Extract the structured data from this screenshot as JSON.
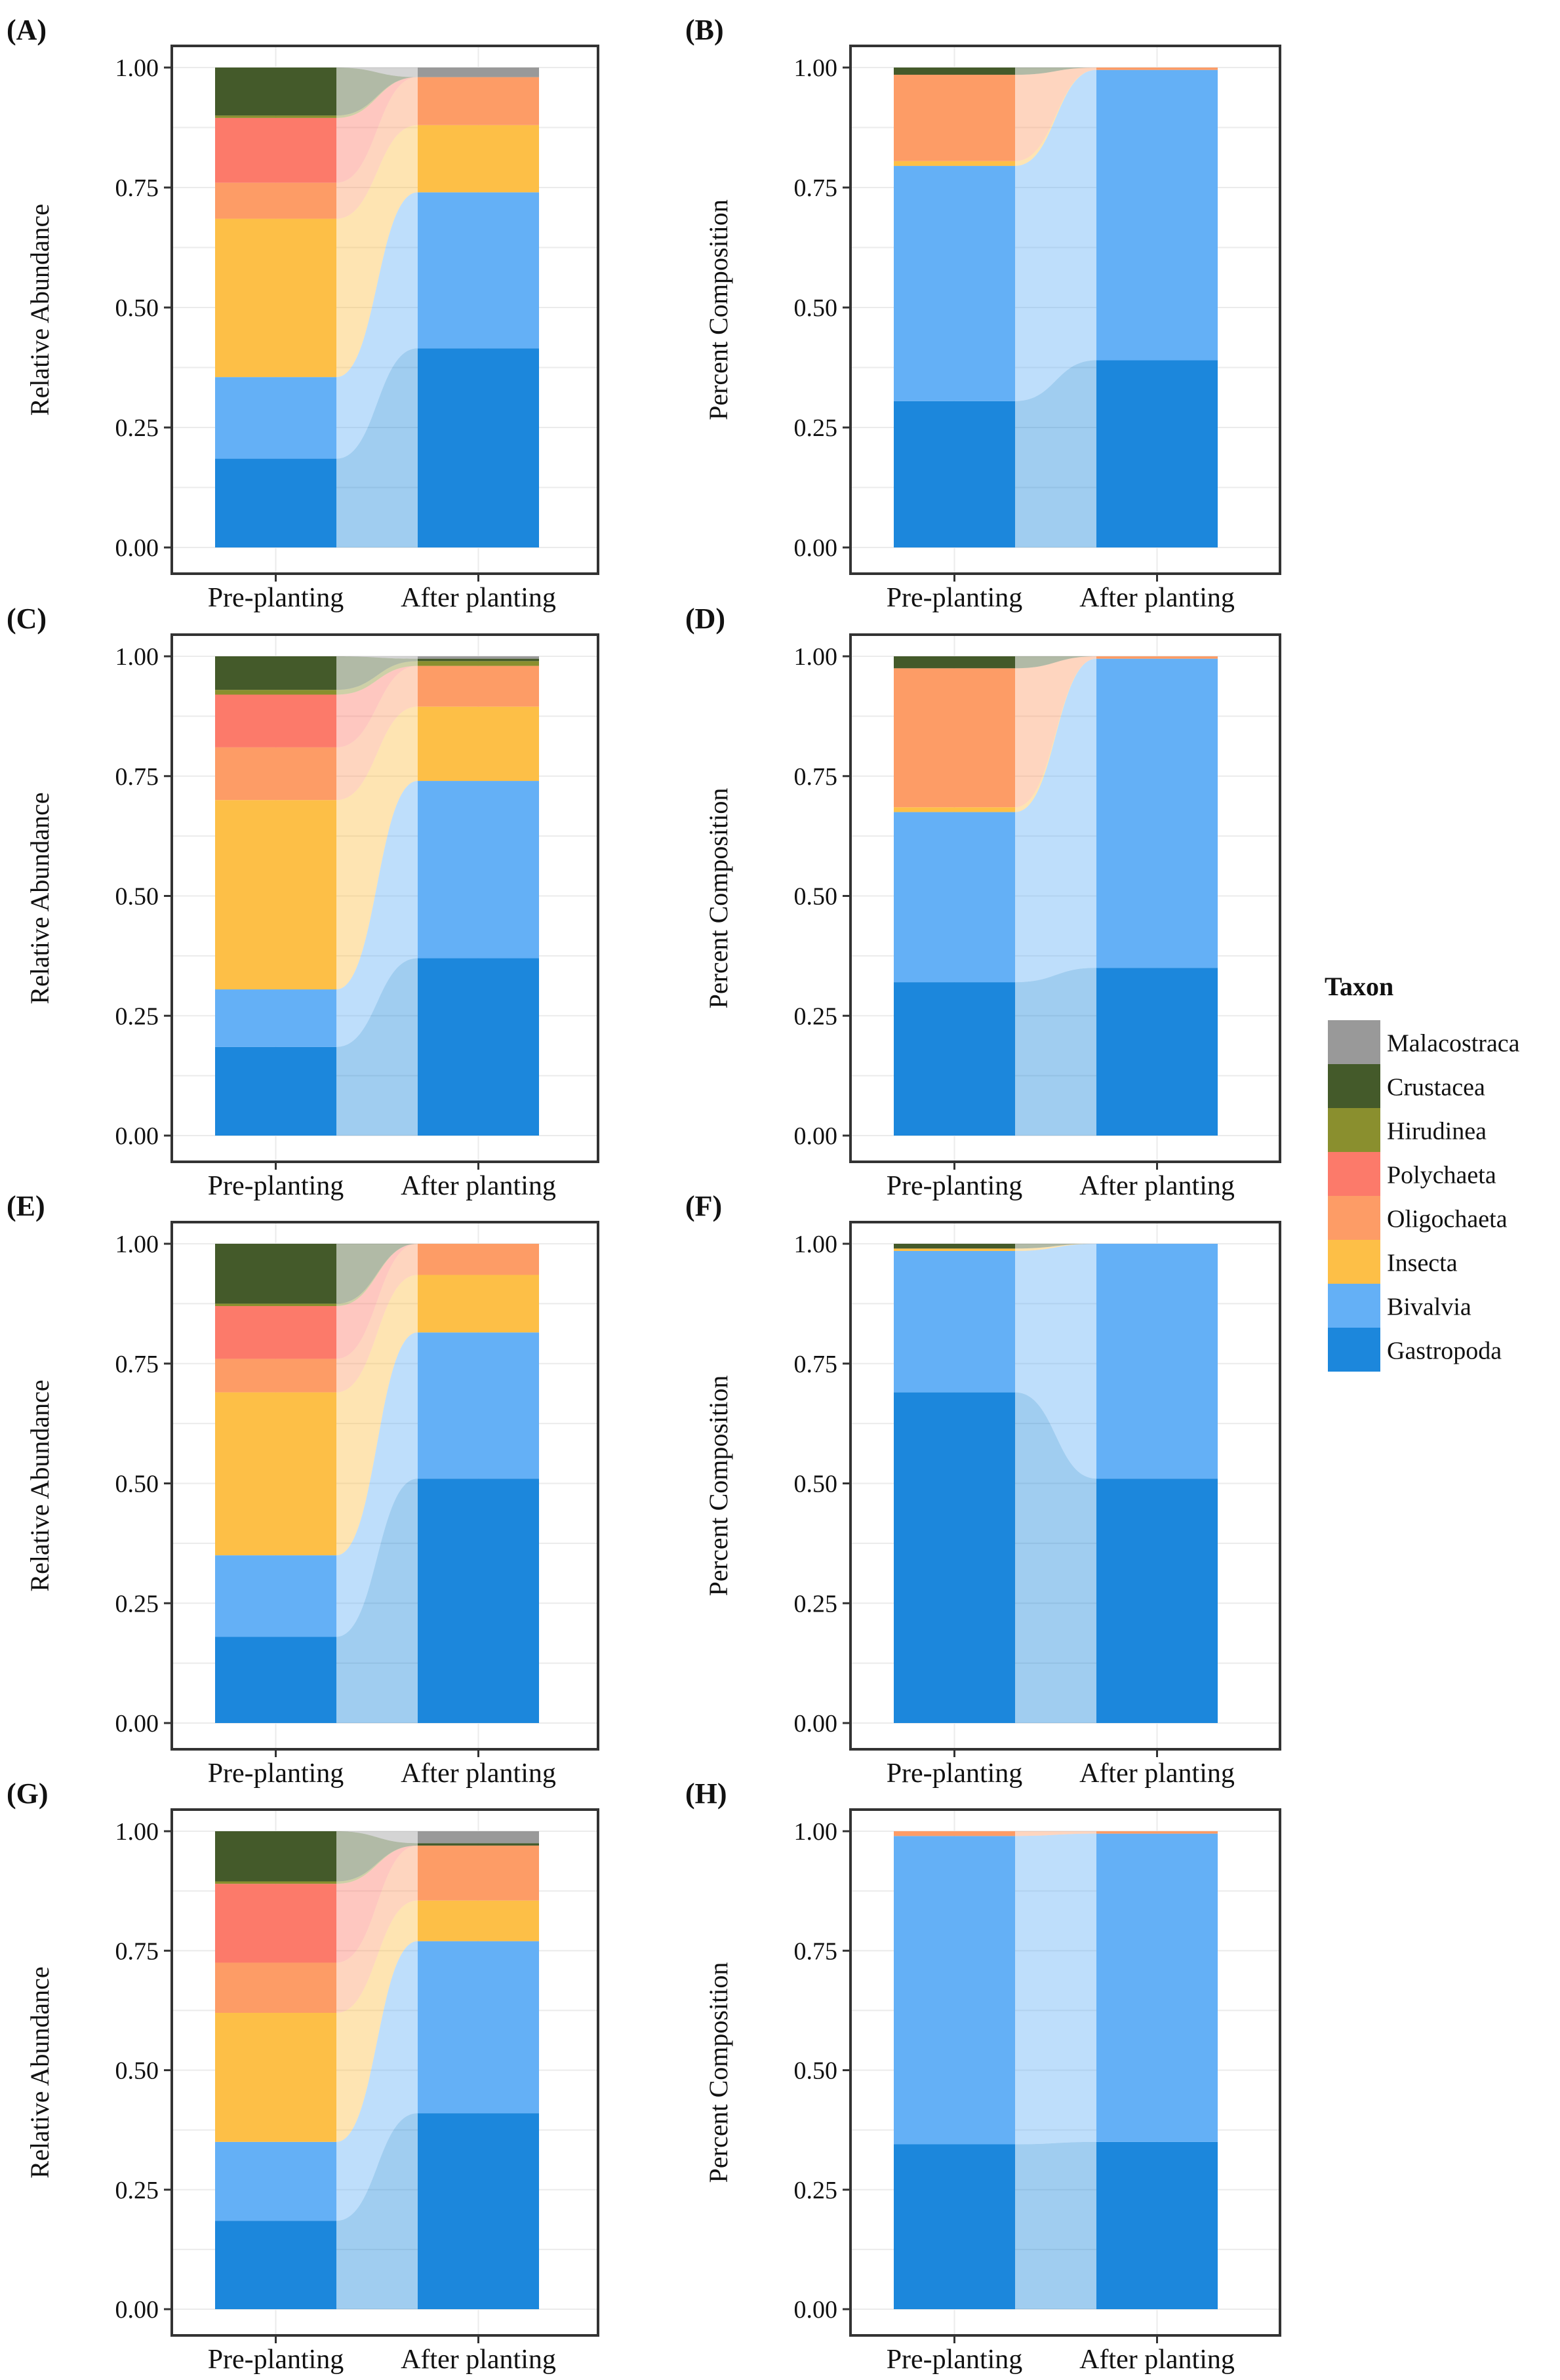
{
  "legend": {
    "title": "Taxon",
    "items": [
      {
        "name": "Malacostraca",
        "color": "#999999"
      },
      {
        "name": "Crustacea",
        "color": "#445a2a"
      },
      {
        "name": "Hirudinea",
        "color": "#8a8f2e"
      },
      {
        "name": "Polychaeta",
        "color": "#fc7a6a"
      },
      {
        "name": "Oligochaeta",
        "color": "#fd9c66"
      },
      {
        "name": "Insecta",
        "color": "#fdbf47"
      },
      {
        "name": "Bivalvia",
        "color": "#64b0f6"
      },
      {
        "name": "Gastropoda",
        "color": "#1c87dc"
      }
    ]
  },
  "chart_data": [
    {
      "type": "bar",
      "stacked": true,
      "panel": "(A)",
      "ylabel": "Relative Abundance",
      "ylim": [
        0,
        1
      ],
      "yticks": [
        "0.00",
        "0.25",
        "0.50",
        "0.75",
        "1.00"
      ],
      "categories": [
        "Pre-planting",
        "After planting"
      ],
      "series": [
        {
          "name": "Gastropoda",
          "values": [
            0.185,
            0.415
          ]
        },
        {
          "name": "Bivalvia",
          "values": [
            0.17,
            0.325
          ]
        },
        {
          "name": "Insecta",
          "values": [
            0.33,
            0.14
          ]
        },
        {
          "name": "Oligochaeta",
          "values": [
            0.075,
            0.1
          ]
        },
        {
          "name": "Polychaeta",
          "values": [
            0.135,
            0.0
          ]
        },
        {
          "name": "Hirudinea",
          "values": [
            0.005,
            0.0
          ]
        },
        {
          "name": "Crustacea",
          "values": [
            0.1,
            0.0
          ]
        },
        {
          "name": "Malacostraca",
          "values": [
            0.0,
            0.02
          ]
        }
      ]
    },
    {
      "type": "bar",
      "stacked": true,
      "panel": "(B)",
      "ylabel": "Percent Composition",
      "ylim": [
        0,
        1
      ],
      "yticks": [
        "0.00",
        "0.25",
        "0.50",
        "0.75",
        "1.00"
      ],
      "categories": [
        "Pre-planting",
        "After planting"
      ],
      "series": [
        {
          "name": "Gastropoda",
          "values": [
            0.305,
            0.39
          ]
        },
        {
          "name": "Bivalvia",
          "values": [
            0.49,
            0.605
          ]
        },
        {
          "name": "Insecta",
          "values": [
            0.01,
            0.0
          ]
        },
        {
          "name": "Oligochaeta",
          "values": [
            0.18,
            0.005
          ]
        },
        {
          "name": "Polychaeta",
          "values": [
            0.0,
            0.0
          ]
        },
        {
          "name": "Hirudinea",
          "values": [
            0.0,
            0.0
          ]
        },
        {
          "name": "Crustacea",
          "values": [
            0.015,
            0.0
          ]
        },
        {
          "name": "Malacostraca",
          "values": [
            0.0,
            0.0
          ]
        }
      ]
    },
    {
      "type": "bar",
      "stacked": true,
      "panel": "(C)",
      "ylabel": "Relative Abundance",
      "ylim": [
        0,
        1
      ],
      "yticks": [
        "0.00",
        "0.25",
        "0.50",
        "0.75",
        "1.00"
      ],
      "categories": [
        "Pre-planting",
        "After planting"
      ],
      "series": [
        {
          "name": "Gastropoda",
          "values": [
            0.185,
            0.37
          ]
        },
        {
          "name": "Bivalvia",
          "values": [
            0.12,
            0.37
          ]
        },
        {
          "name": "Insecta",
          "values": [
            0.395,
            0.155
          ]
        },
        {
          "name": "Oligochaeta",
          "values": [
            0.11,
            0.085
          ]
        },
        {
          "name": "Polychaeta",
          "values": [
            0.11,
            0.0
          ]
        },
        {
          "name": "Hirudinea",
          "values": [
            0.01,
            0.01
          ]
        },
        {
          "name": "Crustacea",
          "values": [
            0.07,
            0.005
          ]
        },
        {
          "name": "Malacostraca",
          "values": [
            0.0,
            0.005
          ]
        }
      ]
    },
    {
      "type": "bar",
      "stacked": true,
      "panel": "(D)",
      "ylabel": "Percent Composition",
      "ylim": [
        0,
        1
      ],
      "yticks": [
        "0.00",
        "0.25",
        "0.50",
        "0.75",
        "1.00"
      ],
      "categories": [
        "Pre-planting",
        "After planting"
      ],
      "series": [
        {
          "name": "Gastropoda",
          "values": [
            0.32,
            0.35
          ]
        },
        {
          "name": "Bivalvia",
          "values": [
            0.355,
            0.645
          ]
        },
        {
          "name": "Insecta",
          "values": [
            0.01,
            0.0
          ]
        },
        {
          "name": "Oligochaeta",
          "values": [
            0.29,
            0.005
          ]
        },
        {
          "name": "Polychaeta",
          "values": [
            0.0,
            0.0
          ]
        },
        {
          "name": "Hirudinea",
          "values": [
            0.0,
            0.0
          ]
        },
        {
          "name": "Crustacea",
          "values": [
            0.025,
            0.0
          ]
        },
        {
          "name": "Malacostraca",
          "values": [
            0.0,
            0.0
          ]
        }
      ]
    },
    {
      "type": "bar",
      "stacked": true,
      "panel": "(E)",
      "ylabel": "Relative Abundance",
      "ylim": [
        0,
        1
      ],
      "yticks": [
        "0.00",
        "0.25",
        "0.50",
        "0.75",
        "1.00"
      ],
      "categories": [
        "Pre-planting",
        "After planting"
      ],
      "series": [
        {
          "name": "Gastropoda",
          "values": [
            0.18,
            0.51
          ]
        },
        {
          "name": "Bivalvia",
          "values": [
            0.17,
            0.305
          ]
        },
        {
          "name": "Insecta",
          "values": [
            0.34,
            0.12
          ]
        },
        {
          "name": "Oligochaeta",
          "values": [
            0.07,
            0.065
          ]
        },
        {
          "name": "Polychaeta",
          "values": [
            0.11,
            0.0
          ]
        },
        {
          "name": "Hirudinea",
          "values": [
            0.005,
            0.0
          ]
        },
        {
          "name": "Crustacea",
          "values": [
            0.125,
            0.0
          ]
        },
        {
          "name": "Malacostraca",
          "values": [
            0.0,
            0.0
          ]
        }
      ]
    },
    {
      "type": "bar",
      "stacked": true,
      "panel": "(F)",
      "ylabel": "Percent Composition",
      "ylim": [
        0,
        1
      ],
      "yticks": [
        "0.00",
        "0.25",
        "0.50",
        "0.75",
        "1.00"
      ],
      "categories": [
        "Pre-planting",
        "After planting"
      ],
      "series": [
        {
          "name": "Gastropoda",
          "values": [
            0.69,
            0.51
          ]
        },
        {
          "name": "Bivalvia",
          "values": [
            0.295,
            0.49
          ]
        },
        {
          "name": "Insecta",
          "values": [
            0.005,
            0.0
          ]
        },
        {
          "name": "Oligochaeta",
          "values": [
            0.0,
            0.0
          ]
        },
        {
          "name": "Polychaeta",
          "values": [
            0.0,
            0.0
          ]
        },
        {
          "name": "Hirudinea",
          "values": [
            0.0,
            0.0
          ]
        },
        {
          "name": "Crustacea",
          "values": [
            0.01,
            0.0
          ]
        },
        {
          "name": "Malacostraca",
          "values": [
            0.0,
            0.0
          ]
        }
      ]
    },
    {
      "type": "bar",
      "stacked": true,
      "panel": "(G)",
      "ylabel": "Relative Abundance",
      "ylim": [
        0,
        1
      ],
      "yticks": [
        "0.00",
        "0.25",
        "0.50",
        "0.75",
        "1.00"
      ],
      "categories": [
        "Pre-planting",
        "After planting"
      ],
      "series": [
        {
          "name": "Gastropoda",
          "values": [
            0.185,
            0.41
          ]
        },
        {
          "name": "Bivalvia",
          "values": [
            0.165,
            0.36
          ]
        },
        {
          "name": "Insecta",
          "values": [
            0.27,
            0.085
          ]
        },
        {
          "name": "Oligochaeta",
          "values": [
            0.105,
            0.115
          ]
        },
        {
          "name": "Polychaeta",
          "values": [
            0.165,
            0.0
          ]
        },
        {
          "name": "Hirudinea",
          "values": [
            0.005,
            0.0
          ]
        },
        {
          "name": "Crustacea",
          "values": [
            0.105,
            0.005
          ]
        },
        {
          "name": "Malacostraca",
          "values": [
            0.0,
            0.025
          ]
        }
      ]
    },
    {
      "type": "bar",
      "stacked": true,
      "panel": "(H)",
      "ylabel": "Percent Composition",
      "ylim": [
        0,
        1
      ],
      "yticks": [
        "0.00",
        "0.25",
        "0.50",
        "0.75",
        "1.00"
      ],
      "categories": [
        "Pre-planting",
        "After planting"
      ],
      "series": [
        {
          "name": "Gastropoda",
          "values": [
            0.345,
            0.35
          ]
        },
        {
          "name": "Bivalvia",
          "values": [
            0.645,
            0.645
          ]
        },
        {
          "name": "Insecta",
          "values": [
            0.0,
            0.0
          ]
        },
        {
          "name": "Oligochaeta",
          "values": [
            0.01,
            0.005
          ]
        },
        {
          "name": "Polychaeta",
          "values": [
            0.0,
            0.0
          ]
        },
        {
          "name": "Hirudinea",
          "values": [
            0.0,
            0.0
          ]
        },
        {
          "name": "Crustacea",
          "values": [
            0.0,
            0.0
          ]
        },
        {
          "name": "Malacostraca",
          "values": [
            0.0,
            0.0
          ]
        }
      ]
    }
  ]
}
